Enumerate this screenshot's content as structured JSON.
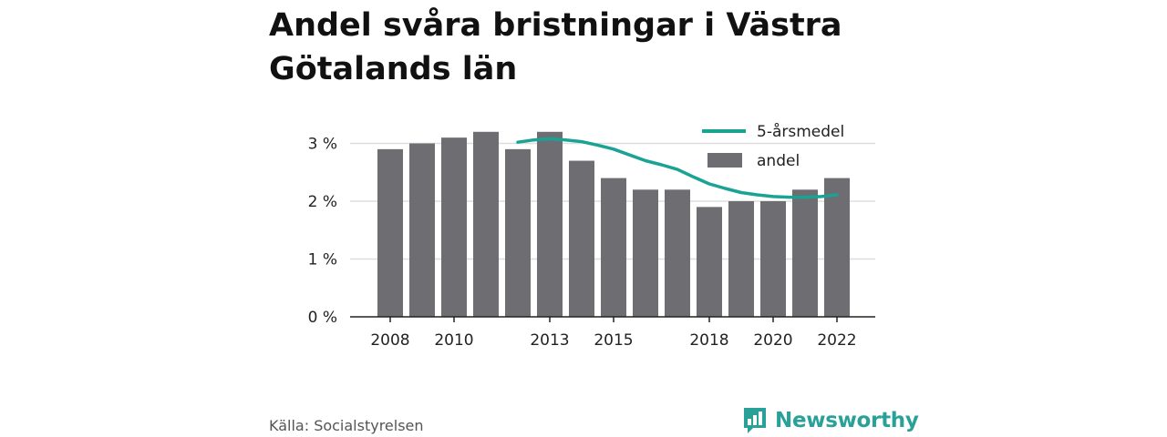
{
  "title": "Andel svåra bristningar i Västra Götalands län",
  "source": "Källa: Socialstyrelsen",
  "brand": {
    "name": "Newsworthy",
    "icon": "bar-chart-speech-bubble-icon",
    "color": "#2aa198"
  },
  "chart_data": {
    "type": "bar",
    "x": [
      2008,
      2009,
      2010,
      2011,
      2012,
      2013,
      2014,
      2015,
      2016,
      2017,
      2018,
      2019,
      2020,
      2021,
      2022
    ],
    "x_tick_labels": [
      "2008",
      "2010",
      "2013",
      "2015",
      "2018",
      "2020",
      "2022"
    ],
    "y_tick_labels": [
      "0 %",
      "1 %",
      "2 %",
      "3 %"
    ],
    "ylim": [
      0,
      3.3
    ],
    "y_ticks": [
      0,
      1,
      2,
      3
    ],
    "grid": true,
    "legend_position": "top-right",
    "series": [
      {
        "name": "andel",
        "type": "bar",
        "color": "#6e6d72",
        "values": [
          2.9,
          3.0,
          3.1,
          3.2,
          2.9,
          3.2,
          2.7,
          2.4,
          2.2,
          2.2,
          1.9,
          2.0,
          2.0,
          2.2,
          2.4
        ]
      },
      {
        "name": "5-årsmedel",
        "type": "line",
        "color": "#1aa394",
        "x": [
          2012,
          2012.5,
          2013,
          2013.5,
          2014,
          2014.5,
          2015,
          2015.5,
          2016,
          2016.5,
          2017,
          2017.5,
          2018,
          2018.5,
          2019,
          2019.5,
          2020,
          2020.5,
          2021,
          2021.5,
          2022
        ],
        "values": [
          3.02,
          3.06,
          3.08,
          3.06,
          3.03,
          2.97,
          2.9,
          2.8,
          2.7,
          2.63,
          2.55,
          2.42,
          2.3,
          2.22,
          2.15,
          2.11,
          2.08,
          2.07,
          2.07,
          2.08,
          2.11
        ]
      }
    ]
  }
}
